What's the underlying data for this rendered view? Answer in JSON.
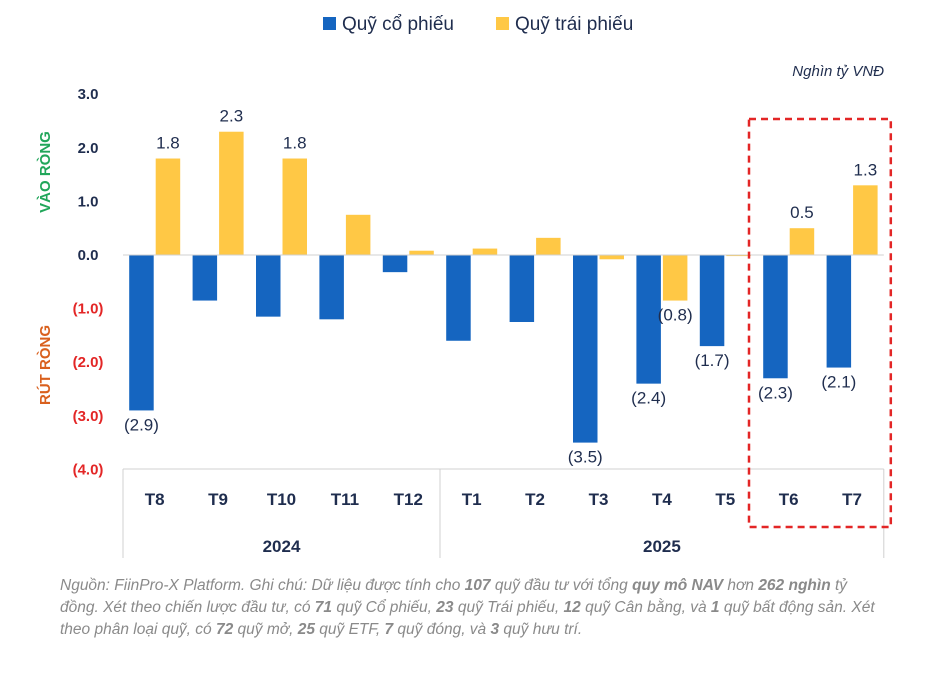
{
  "chart_data": {
    "type": "bar",
    "unit": "Nghìn tỷ VNĐ",
    "categories": [
      "T8",
      "T9",
      "T10",
      "T11",
      "T12",
      "T1",
      "T2",
      "T3",
      "T4",
      "T5",
      "T6",
      "T7"
    ],
    "groups": [
      {
        "label": "2024",
        "categories": [
          "T8",
          "T9",
          "T10",
          "T11",
          "T12"
        ]
      },
      {
        "label": "2025",
        "categories": [
          "T1",
          "T2",
          "T3",
          "T4",
          "T5",
          "T6",
          "T7"
        ]
      }
    ],
    "series": [
      {
        "name": "Quỹ cổ phiếu",
        "color": "#1565C0",
        "values": [
          -2.9,
          -0.85,
          -1.15,
          -1.2,
          -0.32,
          -1.6,
          -1.25,
          -3.5,
          -2.4,
          -1.7,
          -2.3,
          -2.1
        ]
      },
      {
        "name": "Quỹ trái phiếu",
        "color": "#FFC845",
        "values": [
          1.8,
          2.3,
          1.8,
          0.75,
          0.08,
          0.12,
          0.32,
          -0.08,
          -0.85,
          -0.02,
          0.5,
          1.3
        ]
      }
    ],
    "data_labels": [
      {
        "series": 0,
        "index": 0,
        "text": "(2.9)"
      },
      {
        "series": 1,
        "index": 0,
        "text": "1.8"
      },
      {
        "series": 1,
        "index": 1,
        "text": "2.3"
      },
      {
        "series": 1,
        "index": 2,
        "text": "1.8"
      },
      {
        "series": 0,
        "index": 7,
        "text": "(3.5)"
      },
      {
        "series": 0,
        "index": 8,
        "text": "(2.4)"
      },
      {
        "series": 1,
        "index": 8,
        "text": "(0.8)"
      },
      {
        "series": 0,
        "index": 9,
        "text": "(1.7)"
      },
      {
        "series": 0,
        "index": 10,
        "text": "(2.3)"
      },
      {
        "series": 1,
        "index": 10,
        "text": "0.5"
      },
      {
        "series": 0,
        "index": 11,
        "text": "(2.1)"
      },
      {
        "series": 1,
        "index": 11,
        "text": "1.3"
      }
    ],
    "y_ticks": [
      {
        "value": 3.0,
        "label": "3.0"
      },
      {
        "value": 2.0,
        "label": "2.0"
      },
      {
        "value": 1.0,
        "label": "1.0"
      },
      {
        "value": 0.0,
        "label": "0.0"
      },
      {
        "value": -1.0,
        "label": "(1.0)"
      },
      {
        "value": -2.0,
        "label": "(2.0)"
      },
      {
        "value": -3.0,
        "label": "(3.0)"
      },
      {
        "value": -4.0,
        "label": "(4.0)"
      }
    ],
    "ylim": [
      -4.0,
      3.0
    ],
    "positive_label": "VÀO RÒNG",
    "negative_label": "RÚT RÒNG",
    "highlight": {
      "categories": [
        "T6",
        "T7"
      ],
      "style": "dashed",
      "color": "#E32626"
    },
    "colors": {
      "positive_label": "#21A65A",
      "negative_label": "#D9601E",
      "tick_positive": "#1f2d4e",
      "tick_negative": "#E32626",
      "text": "#1f2d4e"
    }
  },
  "footnote": {
    "segments": [
      {
        "text": "Nguồn: FiinPro-X Platform. Ghi chú: ",
        "bold": false
      },
      {
        "text": "Dữ liệu được tính cho ",
        "bold": false
      },
      {
        "text": "107",
        "bold": true
      },
      {
        "text": " quỹ đầu tư với tổng ",
        "bold": false
      },
      {
        "text": "quy mô NAV",
        "bold": true
      },
      {
        "text": " hơn ",
        "bold": false
      },
      {
        "text": "262 nghìn",
        "bold": true
      },
      {
        "text": " tỷ đồng. Xét theo chiến lược đầu tư, có ",
        "bold": false
      },
      {
        "text": "71",
        "bold": true
      },
      {
        "text": " quỹ Cổ phiếu, ",
        "bold": false
      },
      {
        "text": "23",
        "bold": true
      },
      {
        "text": " quỹ Trái phiếu, ",
        "bold": false
      },
      {
        "text": "12",
        "bold": true
      },
      {
        "text": " quỹ Cân bằng, và ",
        "bold": false
      },
      {
        "text": "1",
        "bold": true
      },
      {
        "text": " quỹ bất động sản. Xét theo phân loại quỹ, có ",
        "bold": false
      },
      {
        "text": "72",
        "bold": true
      },
      {
        "text": " quỹ mở, ",
        "bold": false
      },
      {
        "text": "25",
        "bold": true
      },
      {
        "text": " quỹ ETF, ",
        "bold": false
      },
      {
        "text": "7",
        "bold": true
      },
      {
        "text": " quỹ đóng, và ",
        "bold": false
      },
      {
        "text": "3",
        "bold": true
      },
      {
        "text": " quỹ hưu trí.",
        "bold": false
      }
    ]
  }
}
